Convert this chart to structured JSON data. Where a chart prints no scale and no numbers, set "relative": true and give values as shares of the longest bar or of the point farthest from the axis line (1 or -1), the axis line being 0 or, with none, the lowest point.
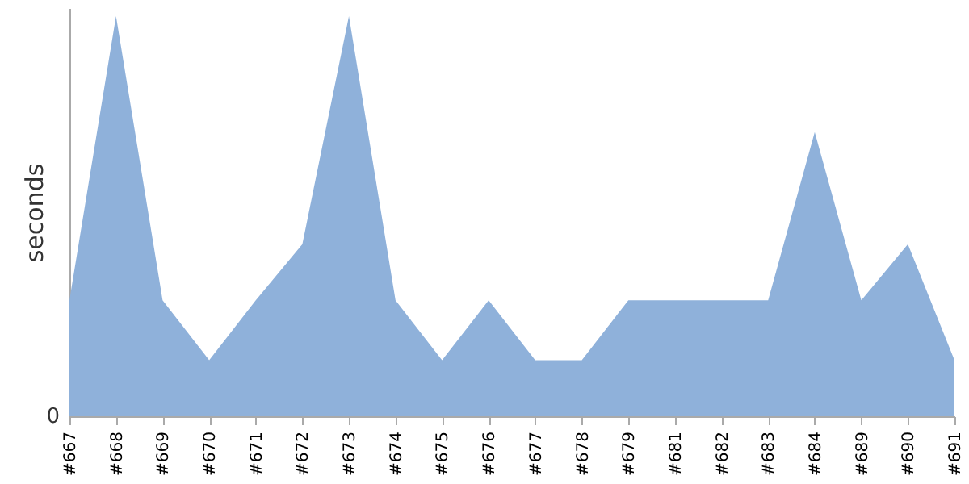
{
  "chart_data": {
    "type": "area",
    "ylabel": "seconds",
    "relative": true,
    "annotations": [
      "0"
    ],
    "categories": [
      "#667",
      "#668",
      "#669",
      "#670",
      "#671",
      "#672",
      "#673",
      "#674",
      "#675",
      "#676",
      "#677",
      "#678",
      "#679",
      "#681",
      "#682",
      "#683",
      "#684",
      "#689",
      "#690",
      "#691"
    ],
    "series": [
      {
        "color": "#8fb1da",
        "values": [
          0.29,
          1,
          0.29,
          0.14,
          0.29,
          0.43,
          1,
          0.29,
          0.14,
          0.29,
          0.14,
          0.14,
          0.29,
          0.29,
          0.29,
          0.29,
          0.71,
          0.29,
          0.43,
          0.14
        ]
      }
    ],
    "grid": false
  }
}
